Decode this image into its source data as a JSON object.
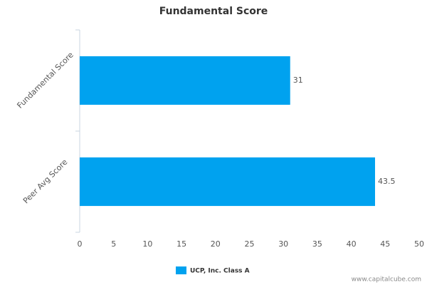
{
  "chart_data": {
    "type": "bar",
    "title": "Fundamental Score",
    "categories": [
      "Fundamental Score",
      "Peer Avg Score"
    ],
    "series": [
      {
        "name": "UCP, Inc. Class A",
        "color": "#00a2ef",
        "values": [
          31,
          43.5
        ]
      }
    ],
    "xlim": [
      0,
      50
    ],
    "xticks": [
      0,
      5,
      10,
      15,
      20,
      25,
      30,
      35,
      40,
      45,
      50
    ],
    "watermark": "www.capitalcube.com"
  }
}
